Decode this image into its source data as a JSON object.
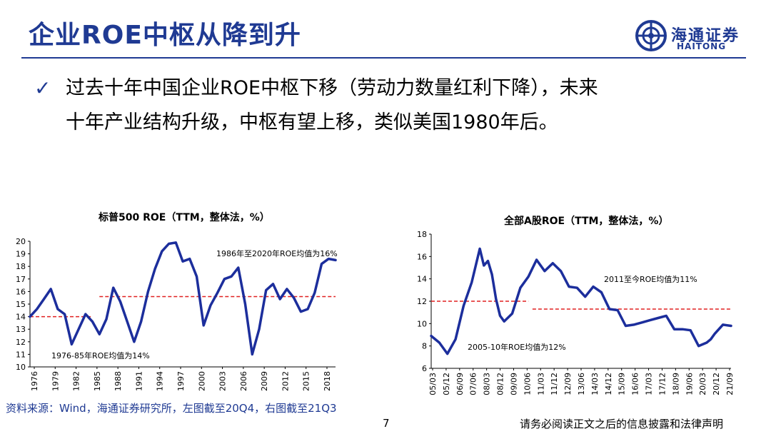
{
  "slide": {
    "title": "企业ROE中枢从降到升",
    "bullet_lines": [
      "过去十年中国企业ROE中枢下移（劳动力数量红利下降），未来",
      "十年产业结构升级，中枢有望上移，类似美国1980年后。"
    ],
    "checkmark": "✓"
  },
  "logo": {
    "cn": "海通证券",
    "en": "HAITONG"
  },
  "footer": {
    "source": "资料来源：Wind，海通证券研究所，左图截至20Q4，右图截至21Q3",
    "page": "7",
    "disclaimer": "请务必阅读正文之后的信息披露和法律声明"
  },
  "colors": {
    "brand": "#1f3a93",
    "series": "#1c2e9c",
    "mean_line": "#e02020"
  },
  "chart_data": [
    {
      "type": "line",
      "title": "标普500 ROE（TTM，整体法，%）",
      "ylim": [
        10,
        20
      ],
      "yticks": [
        10,
        11,
        12,
        13,
        14,
        15,
        16,
        17,
        18,
        19,
        20
      ],
      "xlim": [
        1976,
        2020
      ],
      "xticks": [
        "1976",
        "1979",
        "1982",
        "1985",
        "1988",
        "1991",
        "1994",
        "1997",
        "2000",
        "2003",
        "2006",
        "2009",
        "2012",
        "2015",
        "2018"
      ],
      "x": [
        1976,
        1977,
        1978,
        1979,
        1980,
        1981,
        1982,
        1983,
        1984,
        1985,
        1986,
        1987,
        1988,
        1989,
        1990,
        1991,
        1992,
        1993,
        1994,
        1995,
        1996,
        1997,
        1998,
        1999,
        2000,
        2001,
        2002,
        2003,
        2004,
        2005,
        2006,
        2007,
        2008,
        2009,
        2010,
        2011,
        2012,
        2013,
        2014,
        2015,
        2016,
        2017,
        2018,
        2019,
        2020
      ],
      "values": [
        14.0,
        14.6,
        15.4,
        16.2,
        14.6,
        14.2,
        11.8,
        13.0,
        14.2,
        13.6,
        12.6,
        13.8,
        16.3,
        15.2,
        13.6,
        12.0,
        13.6,
        16.0,
        17.8,
        19.2,
        19.8,
        19.9,
        18.4,
        18.6,
        17.2,
        13.3,
        14.9,
        15.9,
        17.0,
        17.2,
        17.9,
        15.0,
        11.0,
        13.0,
        16.1,
        16.6,
        15.4,
        16.2,
        15.5,
        14.4,
        14.6,
        15.9,
        18.2,
        18.6,
        18.5
      ],
      "mean_lines": [
        {
          "from": 1976,
          "to": 1985,
          "value": 14,
          "label": "1976-85年ROE均值为14%"
        },
        {
          "from": 1986,
          "to": 2020,
          "value": 15.6,
          "label": "1986年至2020年ROE均值为16%"
        }
      ]
    },
    {
      "type": "line",
      "title": "全部A股ROE（TTM，整体法，%）",
      "ylim": [
        6,
        18
      ],
      "yticks": [
        6,
        8,
        10,
        12,
        14,
        16,
        18
      ],
      "xlim": [
        0,
        74
      ],
      "xticks": [
        "05/03",
        "05/12",
        "06/09",
        "07/06",
        "08/03",
        "08/12",
        "09/09",
        "10/06",
        "11/03",
        "11/12",
        "12/09",
        "13/06",
        "14/03",
        "14/12",
        "15/09",
        "16/06",
        "17/03",
        "17/12",
        "18/09",
        "19/06",
        "20/03",
        "20/12",
        "21/09"
      ],
      "x": [
        0,
        2,
        4,
        6,
        8,
        10,
        12,
        13,
        14,
        15,
        16,
        17,
        18,
        20,
        22,
        24,
        26,
        28,
        30,
        32,
        34,
        36,
        38,
        40,
        42,
        44,
        46,
        48,
        50,
        52,
        54,
        56,
        58,
        60,
        62,
        64,
        66,
        68,
        69,
        70,
        72,
        74
      ],
      "values": [
        8.9,
        8.3,
        7.3,
        8.6,
        11.6,
        13.7,
        16.7,
        15.2,
        15.6,
        14.4,
        12.2,
        10.7,
        10.2,
        10.9,
        13.2,
        14.2,
        15.7,
        14.7,
        15.4,
        14.7,
        13.3,
        13.2,
        12.4,
        13.3,
        12.8,
        11.3,
        11.2,
        9.8,
        9.9,
        10.1,
        10.3,
        10.5,
        10.7,
        9.5,
        9.5,
        9.4,
        8.0,
        8.3,
        8.6,
        9.1,
        9.9,
        9.8
      ],
      "mean_lines": [
        {
          "from": 0,
          "to": 24,
          "value": 12,
          "label": "2005-10年ROE均值为12%"
        },
        {
          "from": 25,
          "to": 74,
          "value": 11.3,
          "label": "2011至今ROE均值为11%"
        }
      ]
    }
  ]
}
